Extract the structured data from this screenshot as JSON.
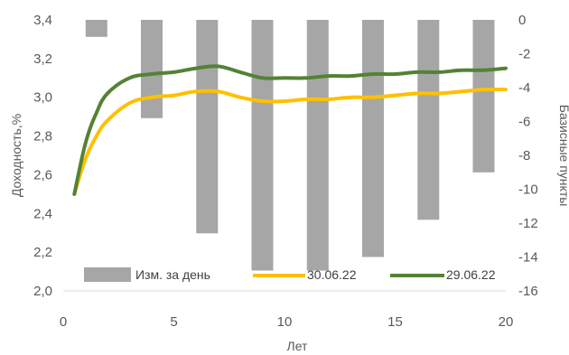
{
  "chart_data": {
    "type": "bar+line",
    "xlabel": "Лет",
    "ylabel_left": "Доходность,%",
    "ylabel_right": "Базисные пункты",
    "xlim": [
      0,
      20
    ],
    "ylim_left": [
      2.0,
      3.4
    ],
    "ylim_right": [
      -16,
      0
    ],
    "x_ticks": [
      "0",
      "5",
      "10",
      "15",
      "20"
    ],
    "y_left_ticks": [
      "2,0",
      "2,2",
      "2,4",
      "2,6",
      "2,8",
      "3,0",
      "3,2",
      "3,4"
    ],
    "y_right_ticks": [
      "0",
      "-2",
      "-4",
      "-6",
      "-8",
      "-10",
      "-12",
      "-14",
      "-16"
    ],
    "bars": {
      "name": "Изм. за день",
      "axis": "right",
      "color": "#a6a6a6",
      "x": [
        1.5,
        4,
        6.5,
        9,
        11.5,
        14,
        16.5,
        19
      ],
      "values": [
        -1,
        -5.8,
        -12.6,
        -14.8,
        -14.8,
        -14.0,
        -11.8,
        -9.0
      ]
    },
    "series": [
      {
        "name": "30.06.22",
        "axis": "left",
        "color": "#ffc000",
        "x": [
          0.5,
          1,
          1.5,
          2,
          3,
          4,
          5,
          6,
          7,
          8,
          9,
          10,
          11,
          12,
          13,
          14,
          15,
          16,
          17,
          18,
          19,
          20
        ],
        "values": [
          2.5,
          2.68,
          2.8,
          2.88,
          2.97,
          3.0,
          3.01,
          3.03,
          3.03,
          3.0,
          2.98,
          2.98,
          2.99,
          2.99,
          3.0,
          3.0,
          3.01,
          3.02,
          3.02,
          3.03,
          3.04,
          3.04
        ]
      },
      {
        "name": "29.06.22",
        "axis": "left",
        "color": "#548235",
        "x": [
          0.5,
          1,
          1.5,
          2,
          3,
          4,
          5,
          6,
          7,
          8,
          9,
          10,
          11,
          12,
          13,
          14,
          15,
          16,
          17,
          18,
          19,
          20
        ],
        "values": [
          2.5,
          2.76,
          2.92,
          3.02,
          3.1,
          3.12,
          3.13,
          3.15,
          3.16,
          3.13,
          3.1,
          3.1,
          3.1,
          3.11,
          3.11,
          3.12,
          3.12,
          3.13,
          3.13,
          3.14,
          3.14,
          3.15
        ]
      }
    ],
    "legend_position": "bottom-inside",
    "grid": false
  }
}
